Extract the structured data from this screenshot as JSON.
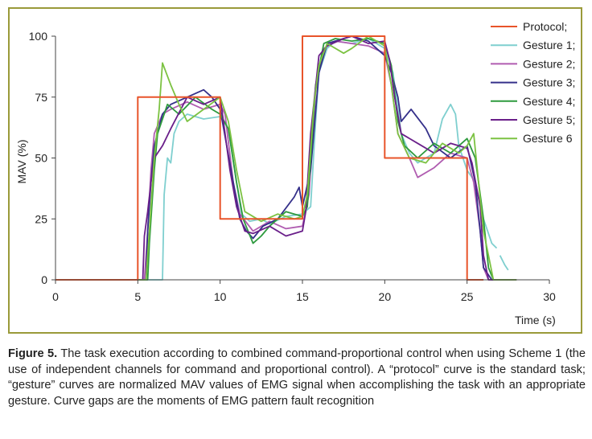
{
  "chart_data": {
    "type": "line",
    "xlabel": "Time (s)",
    "ylabel": "MAV (%)",
    "xlim": [
      0,
      30
    ],
    "ylim": [
      0,
      100
    ],
    "x_ticks": [
      "0",
      "5",
      "10",
      "15",
      "20",
      "25",
      "30"
    ],
    "y_ticks": [
      "0",
      "25",
      "50",
      "75",
      "100"
    ],
    "grid": false,
    "legend_position": "top-right",
    "series": [
      {
        "name": "Protocol;",
        "color": "#e8542a",
        "points": [
          [
            0,
            0
          ],
          [
            5,
            0
          ],
          [
            5,
            75
          ],
          [
            10,
            75
          ],
          [
            10,
            25
          ],
          [
            15,
            25
          ],
          [
            15,
            100
          ],
          [
            20,
            100
          ],
          [
            20,
            50
          ],
          [
            25,
            50
          ],
          [
            25,
            0
          ],
          [
            26,
            0
          ]
        ]
      },
      {
        "name": "Gesture 1;",
        "color": "#7fcfcf",
        "points": [
          [
            0,
            0
          ],
          [
            6.5,
            0
          ],
          [
            6.6,
            35
          ],
          [
            6.8,
            50
          ],
          [
            7,
            48
          ],
          [
            7.2,
            60
          ],
          [
            7.5,
            65
          ],
          [
            8,
            68
          ],
          [
            9,
            66
          ],
          [
            10,
            67
          ],
          [
            10.5,
            62
          ],
          [
            11,
            40
          ],
          [
            11.3,
            27
          ],
          [
            11.8,
            24
          ],
          [
            12.5,
            25
          ],
          [
            13,
            23
          ],
          [
            14,
            26
          ],
          [
            15,
            27
          ],
          [
            15.5,
            30
          ],
          [
            15.8,
            65
          ],
          [
            16,
            85
          ],
          [
            16.5,
            95
          ],
          [
            17,
            98
          ],
          [
            18,
            97
          ],
          [
            19,
            99
          ],
          [
            20,
            95
          ],
          [
            20.5,
            85
          ],
          [
            21,
            60
          ],
          [
            21.5,
            52
          ],
          [
            22,
            48
          ],
          [
            23,
            52
          ],
          [
            23.5,
            66
          ],
          [
            24,
            72
          ],
          [
            24.3,
            68
          ],
          [
            24.5,
            55
          ],
          [
            25,
            45
          ],
          [
            25.5,
            40
          ],
          [
            26,
            25
          ],
          [
            26.5,
            15
          ],
          [
            26.8,
            13
          ],
          null,
          [
            27,
            10
          ],
          [
            27.3,
            6
          ],
          [
            27.5,
            4
          ]
        ]
      },
      {
        "name": "Gesture 2;",
        "color": "#b05cb0",
        "points": [
          [
            0,
            0
          ],
          [
            5.4,
            0
          ],
          [
            5.6,
            20
          ],
          [
            5.8,
            45
          ],
          [
            6,
            60
          ],
          [
            6.5,
            68
          ],
          [
            7,
            70
          ],
          [
            8,
            73
          ],
          [
            9,
            70
          ],
          [
            10,
            72
          ],
          [
            10.3,
            68
          ],
          [
            10.8,
            40
          ],
          [
            11.2,
            27
          ],
          [
            12,
            20
          ],
          [
            13,
            24
          ],
          [
            14,
            21
          ],
          [
            15,
            22
          ],
          [
            15.4,
            35
          ],
          [
            15.8,
            78
          ],
          [
            16.3,
            95
          ],
          [
            17,
            98
          ],
          [
            18,
            97
          ],
          [
            19,
            96
          ],
          [
            20,
            93
          ],
          [
            20.4,
            80
          ],
          [
            20.8,
            60
          ],
          [
            21.5,
            50
          ],
          [
            22,
            42
          ],
          [
            23,
            46
          ],
          [
            24,
            52
          ],
          [
            25,
            50
          ],
          [
            25.4,
            40
          ],
          [
            25.8,
            20
          ],
          [
            26,
            5
          ],
          [
            26.3,
            0
          ],
          [
            28,
            0
          ]
        ]
      },
      {
        "name": "Gesture 3;",
        "color": "#35308a",
        "points": [
          [
            0,
            0
          ],
          [
            5.5,
            0
          ],
          [
            5.6,
            20
          ],
          [
            5.8,
            40
          ],
          [
            6,
            55
          ],
          [
            6.5,
            68
          ],
          [
            7,
            72
          ],
          [
            8,
            75
          ],
          [
            9,
            78
          ],
          [
            9.5,
            75
          ],
          [
            10,
            70
          ],
          [
            10.4,
            55
          ],
          [
            10.8,
            40
          ],
          [
            11.2,
            25
          ],
          [
            11.6,
            20
          ],
          [
            12,
            17
          ],
          [
            12.6,
            22
          ],
          [
            13.5,
            25
          ],
          [
            14.5,
            34
          ],
          [
            14.8,
            38
          ],
          [
            15,
            30
          ],
          [
            15.5,
            45
          ],
          [
            16,
            85
          ],
          [
            16.5,
            97
          ],
          [
            17.5,
            99
          ],
          [
            18,
            100
          ],
          [
            19,
            98
          ],
          [
            19.5,
            95
          ],
          [
            20,
            92
          ],
          [
            20.4,
            85
          ],
          [
            20.8,
            75
          ],
          [
            21,
            65
          ],
          [
            21.6,
            70
          ],
          [
            22.5,
            62
          ],
          [
            23,
            55
          ],
          [
            24,
            50
          ],
          [
            25,
            55
          ],
          [
            25.5,
            40
          ],
          [
            25.8,
            20
          ],
          [
            26,
            5
          ],
          [
            26.5,
            0
          ],
          [
            28,
            0
          ]
        ]
      },
      {
        "name": "Gesture 4;",
        "color": "#2e9a3e",
        "points": [
          [
            0,
            0
          ],
          [
            5.6,
            0
          ],
          [
            5.7,
            15
          ],
          [
            6,
            45
          ],
          [
            6.2,
            60
          ],
          [
            6.8,
            72
          ],
          [
            7.5,
            68
          ],
          [
            8.5,
            75
          ],
          [
            9.5,
            70
          ],
          [
            10,
            68
          ],
          [
            10.5,
            62
          ],
          [
            11,
            40
          ],
          [
            11.4,
            25
          ],
          [
            12,
            15
          ],
          [
            12.5,
            18
          ],
          [
            13,
            22
          ],
          [
            14,
            28
          ],
          [
            15,
            26
          ],
          [
            15.3,
            30
          ],
          [
            15.8,
            80
          ],
          [
            16.3,
            97
          ],
          [
            17,
            99
          ],
          [
            18,
            98
          ],
          [
            19,
            99
          ],
          [
            20,
            97
          ],
          [
            20.4,
            88
          ],
          [
            20.8,
            65
          ],
          [
            21.2,
            55
          ],
          [
            22,
            50
          ],
          [
            23,
            56
          ],
          [
            24,
            52
          ],
          [
            25,
            58
          ],
          [
            25.5,
            50
          ],
          [
            26,
            25
          ],
          [
            26.3,
            5
          ],
          [
            26.6,
            0
          ],
          [
            28,
            0
          ]
        ]
      },
      {
        "name": "Gesture 5;",
        "color": "#6a1f8a",
        "points": [
          [
            0,
            0
          ],
          [
            5.3,
            0
          ],
          [
            5.4,
            18
          ],
          [
            5.6,
            28
          ],
          [
            5.8,
            40
          ],
          [
            6,
            50
          ],
          [
            6.5,
            55
          ],
          [
            7,
            62
          ],
          [
            8,
            75
          ],
          [
            9,
            72
          ],
          [
            10,
            75
          ],
          [
            10.3,
            60
          ],
          [
            10.6,
            45
          ],
          [
            11,
            30
          ],
          [
            11.5,
            20
          ],
          [
            12,
            19
          ],
          [
            13,
            22
          ],
          [
            14,
            18
          ],
          [
            15,
            20
          ],
          [
            15.2,
            28
          ],
          [
            15.5,
            60
          ],
          [
            16,
            92
          ],
          [
            16.5,
            96
          ],
          [
            17.5,
            99
          ],
          [
            18,
            100
          ],
          [
            19,
            97
          ],
          [
            20,
            98
          ],
          [
            20.3,
            90
          ],
          [
            20.6,
            75
          ],
          [
            21,
            60
          ],
          [
            22,
            56
          ],
          [
            23,
            52
          ],
          [
            24,
            56
          ],
          [
            25,
            54
          ],
          [
            25.3,
            48
          ],
          [
            25.8,
            30
          ],
          [
            26,
            10
          ],
          [
            26.3,
            0
          ],
          [
            28,
            0
          ]
        ]
      },
      {
        "name": "Gesture 6",
        "color": "#7cc242",
        "points": [
          [
            0,
            0
          ],
          [
            5.5,
            0
          ],
          [
            5.7,
            20
          ],
          [
            6,
            50
          ],
          [
            6.3,
            70
          ],
          [
            6.5,
            89
          ],
          [
            7,
            80
          ],
          [
            7.5,
            72
          ],
          [
            8,
            65
          ],
          [
            9,
            70
          ],
          [
            10,
            75
          ],
          [
            10.5,
            65
          ],
          [
            11,
            45
          ],
          [
            11.5,
            28
          ],
          [
            12.5,
            24
          ],
          [
            13.5,
            27
          ],
          [
            14.5,
            25
          ],
          [
            15,
            26
          ],
          [
            15.3,
            35
          ],
          [
            15.7,
            72
          ],
          [
            16,
            88
          ],
          [
            16.5,
            97
          ],
          [
            17.5,
            93
          ],
          [
            18,
            95
          ],
          [
            19,
            100
          ],
          [
            20,
            96
          ],
          [
            20.4,
            80
          ],
          [
            20.8,
            60
          ],
          [
            21.5,
            50
          ],
          [
            22.5,
            48
          ],
          [
            23.5,
            56
          ],
          [
            24.5,
            52
          ],
          [
            25,
            55
          ],
          [
            25.4,
            60
          ],
          [
            25.7,
            40
          ],
          [
            26,
            20
          ],
          [
            26.3,
            10
          ],
          [
            26.6,
            0
          ],
          [
            28,
            0
          ]
        ]
      }
    ]
  },
  "caption": {
    "label": "Figure 5.",
    "text": " The task execution according to combined command-proportional control when using Scheme 1 (the use of independent channels for command and proportional control). A “protocol” curve is the standard task; “gesture” curves are normalized MAV values of EMG signal when accomplishing the task with an appropriate gesture. Curve gaps are the moments of EMG pattern fault recognition"
  }
}
